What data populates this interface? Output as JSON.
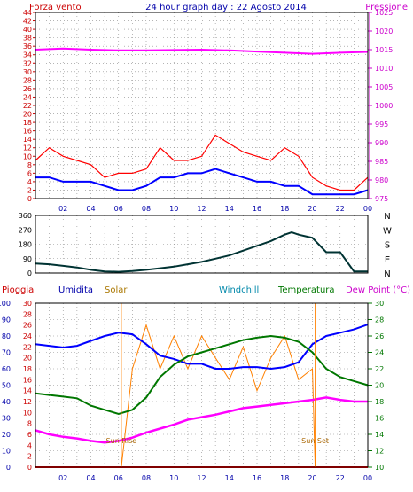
{
  "chart_data": [
    {
      "type": "line",
      "title": "24 hour graph day : 22 Agosto 2014",
      "left_label": "Forza vento",
      "right_label": "Pressione",
      "x_ticks": [
        "02",
        "04",
        "06",
        "08",
        "10",
        "12",
        "14",
        "16",
        "18",
        "20",
        "22",
        "00"
      ],
      "y_left": {
        "range": [
          0,
          44
        ],
        "ticks": [
          0,
          2,
          4,
          6,
          8,
          10,
          12,
          14,
          16,
          18,
          20,
          22,
          24,
          26,
          28,
          30,
          32,
          34,
          36,
          38,
          40,
          42,
          44
        ]
      },
      "y_right": {
        "range": [
          975,
          1025
        ],
        "ticks": [
          975,
          980,
          985,
          990,
          995,
          1000,
          1005,
          1010,
          1015,
          1020,
          1025
        ]
      },
      "grid": true,
      "series": [
        {
          "name": "Forza vento",
          "color": "#ff0000",
          "axis": "left",
          "x": [
            0,
            1,
            2,
            3,
            4,
            5,
            6,
            7,
            8,
            9,
            10,
            11,
            12,
            13,
            14,
            15,
            16,
            17,
            18,
            19,
            20,
            21,
            22,
            23,
            24
          ],
          "y": [
            9,
            12,
            10,
            9,
            8,
            5,
            6,
            6,
            7,
            12,
            9,
            9,
            10,
            15,
            13,
            11,
            10,
            9,
            12,
            10,
            5,
            3,
            2,
            2,
            5
          ]
        },
        {
          "color": "#0000ff",
          "axis": "left",
          "x": [
            0,
            1,
            2,
            3,
            4,
            5,
            6,
            7,
            8,
            9,
            10,
            11,
            12,
            13,
            14,
            15,
            16,
            17,
            18,
            19,
            20,
            21,
            22,
            23,
            24
          ],
          "y": [
            5,
            5,
            4,
            4,
            4,
            3,
            2,
            2,
            3,
            5,
            5,
            6,
            6,
            7,
            6,
            5,
            4,
            4,
            3,
            3,
            1,
            1,
            1,
            1,
            2
          ]
        },
        {
          "name": "Pressione",
          "color": "#ff00ff",
          "axis": "right",
          "x": [
            0,
            2,
            4,
            6,
            8,
            10,
            12,
            14,
            16,
            18,
            20,
            22,
            24
          ],
          "y": [
            1015,
            1015.3,
            1015,
            1014.8,
            1014.8,
            1014.9,
            1015,
            1014.8,
            1014.5,
            1014.2,
            1013.9,
            1014.2,
            1014.4
          ]
        }
      ]
    },
    {
      "type": "line",
      "left_ticks": [
        0,
        90,
        180,
        270,
        360
      ],
      "right_labels": [
        "N",
        "W",
        "S",
        "E",
        "N"
      ],
      "y_range": [
        0,
        360
      ],
      "grid": true,
      "series": [
        {
          "color": "#003333",
          "x": [
            0,
            1,
            2,
            3,
            4,
            5,
            6,
            7,
            8,
            9,
            10,
            11,
            12,
            13,
            14,
            15,
            16,
            17,
            18,
            18.5,
            19,
            19.5,
            20,
            21,
            22,
            23,
            24
          ],
          "y": [
            60,
            55,
            45,
            35,
            20,
            10,
            8,
            12,
            20,
            30,
            40,
            55,
            70,
            90,
            110,
            140,
            170,
            200,
            240,
            255,
            240,
            230,
            220,
            130,
            130,
            10,
            10
          ]
        }
      ]
    },
    {
      "type": "line",
      "labels": {
        "pioggia": "Pioggia",
        "umidita": "Umidita",
        "solar": "Solar",
        "windchill": "Windchill",
        "temperatura": "Temperatura",
        "dew_point": "Dew Point (°C)"
      },
      "pioggia_ticks": [
        0,
        10,
        20,
        30,
        40,
        50,
        60,
        70,
        80,
        90,
        100
      ],
      "solar_ticks": [
        0,
        2,
        4,
        6,
        8,
        10,
        12,
        14,
        16,
        18,
        20,
        22,
        24,
        26,
        28,
        30
      ],
      "temp_ticks": [
        10,
        12,
        14,
        16,
        18,
        20,
        22,
        24,
        26,
        28,
        30
      ],
      "annotations": {
        "sunrise": "Sun Rise",
        "sunset": "Sun Set",
        "sunrise_x": 6.2,
        "sunset_x": 20.2
      },
      "grid": true,
      "series": [
        {
          "name": "Umidita",
          "color": "#0000ff",
          "axis": "pioggia",
          "x": [
            0,
            1,
            2,
            3,
            4,
            5,
            6,
            7,
            8,
            9,
            10,
            11,
            12,
            13,
            14,
            15,
            16,
            17,
            18,
            19,
            20,
            21,
            22,
            23,
            24
          ],
          "y": [
            75,
            74,
            73,
            74,
            77,
            80,
            82,
            81,
            75,
            68,
            66,
            63,
            63,
            60,
            60,
            61,
            61,
            60,
            61,
            64,
            75,
            80,
            82,
            84,
            87
          ]
        },
        {
          "name": "Temperatura",
          "color": "#007700",
          "axis": "temp",
          "x": [
            0,
            1,
            2,
            3,
            4,
            5,
            6,
            7,
            8,
            9,
            10,
            11,
            12,
            13,
            14,
            15,
            16,
            17,
            18,
            19,
            20,
            21,
            22,
            23,
            24
          ],
          "y": [
            19,
            18.8,
            18.6,
            18.4,
            17.5,
            17,
            16.5,
            17,
            18.5,
            21,
            22.5,
            23.5,
            24,
            24.5,
            25,
            25.5,
            25.8,
            26,
            25.8,
            25.3,
            24,
            22,
            21,
            20.5,
            20
          ]
        },
        {
          "name": "Dew Point (°C)",
          "color": "#ff00ff",
          "axis": "temp",
          "x": [
            0,
            1,
            2,
            3,
            4,
            5,
            6,
            7,
            8,
            9,
            10,
            11,
            12,
            13,
            14,
            15,
            16,
            17,
            18,
            19,
            20,
            21,
            22,
            23,
            24
          ],
          "y": [
            14.5,
            14,
            13.7,
            13.5,
            13.2,
            13,
            13.2,
            13.6,
            14.2,
            14.7,
            15.2,
            15.8,
            16.1,
            16.4,
            16.8,
            17.2,
            17.4,
            17.6,
            17.8,
            18,
            18.2,
            18.5,
            18.2,
            18,
            18
          ]
        },
        {
          "name": "Solar",
          "color": "#ff8000",
          "axis": "solar",
          "x": [
            0,
            6,
            6.2,
            7,
            8,
            9,
            10,
            11,
            12,
            13,
            14,
            15,
            16,
            17,
            18,
            19,
            20,
            20.2,
            24
          ],
          "y": [
            0,
            0,
            0,
            18,
            26,
            18,
            24,
            18,
            24,
            20,
            16,
            22,
            14,
            20,
            24,
            16,
            18,
            0,
            0
          ]
        },
        {
          "name": "Pioggia",
          "color": "#ff0000",
          "axis": "pioggia",
          "x": [
            0,
            24
          ],
          "y": [
            0,
            0
          ]
        }
      ]
    }
  ]
}
